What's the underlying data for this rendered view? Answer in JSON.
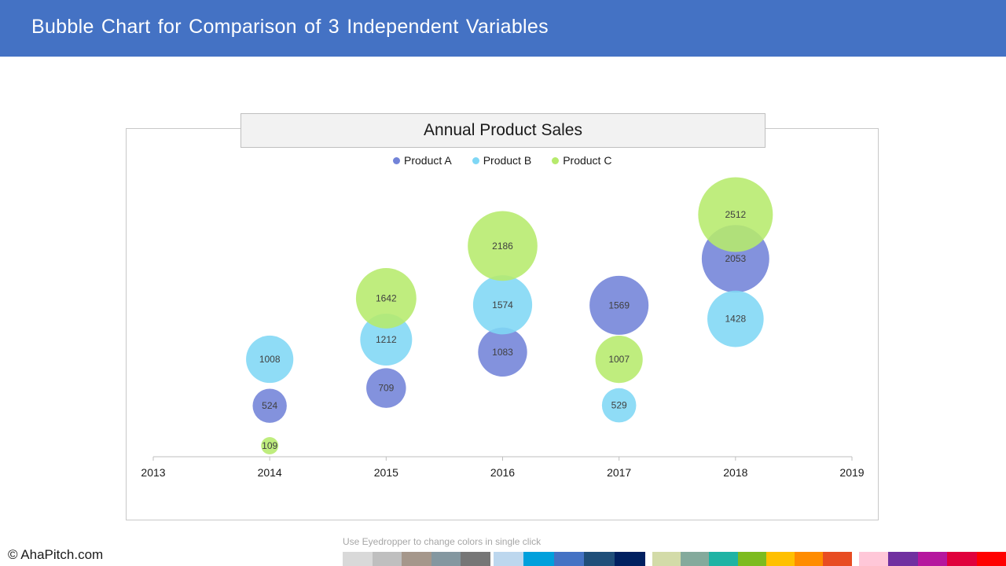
{
  "header": {
    "title": "Bubble Chart for Comparison of 3 Independent Variables",
    "bar_color": "#4472c4"
  },
  "chart_data": {
    "type": "bubble",
    "title": "Annual Product Sales",
    "legend_position": "top",
    "xlim": [
      2013,
      2019
    ],
    "x_ticks": [
      2013,
      2014,
      2015,
      2016,
      2017,
      2018,
      2019
    ],
    "grid": false,
    "series": [
      {
        "name": "Product A",
        "color": "#7283d8",
        "points": [
          {
            "x": 2014,
            "value": 524
          },
          {
            "x": 2015,
            "value": 709
          },
          {
            "x": 2016,
            "value": 1083
          },
          {
            "x": 2017,
            "value": 1569
          },
          {
            "x": 2018,
            "value": 2053
          }
        ]
      },
      {
        "name": "Product B",
        "color": "#7fd7f5",
        "points": [
          {
            "x": 2014,
            "value": 1008
          },
          {
            "x": 2015,
            "value": 1212
          },
          {
            "x": 2016,
            "value": 1574
          },
          {
            "x": 2017,
            "value": 529
          },
          {
            "x": 2018,
            "value": 1428
          }
        ]
      },
      {
        "name": "Product C",
        "color": "#b6ea6c",
        "points": [
          {
            "x": 2014,
            "value": 109
          },
          {
            "x": 2015,
            "value": 1642
          },
          {
            "x": 2016,
            "value": 2186
          },
          {
            "x": 2017,
            "value": 1007
          },
          {
            "x": 2018,
            "value": 2512
          }
        ]
      }
    ]
  },
  "footer": {
    "brand": "© AhaPitch.com",
    "eyedropper_hint": "Use Eyedropper to change colors in single click"
  },
  "palette": [
    "#d9d9d9",
    "#bfbfbf",
    "#a5978b",
    "#8497a0",
    "#767676",
    "#bdd7ee",
    "#00a0dc",
    "#4472c4",
    "#1f4e79",
    "#002060",
    "#d3dba8",
    "#84aa9c",
    "#1fb3a4",
    "#7dbb1f",
    "#ffc000",
    "#ff8c00",
    "#e84c22",
    "#ffc7d8",
    "#7030a0",
    "#b5179e",
    "#e0003c",
    "#ff0000"
  ]
}
